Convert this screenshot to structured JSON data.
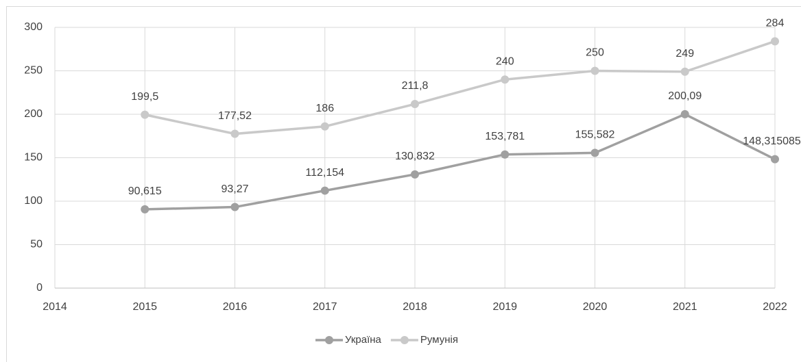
{
  "chart_data": {
    "type": "line",
    "x": [
      2015,
      2016,
      2017,
      2018,
      2019,
      2020,
      2021,
      2022
    ],
    "series": [
      {
        "name": "Україна",
        "color": "#a0a0a0",
        "values": [
          90.615,
          93.27,
          112.154,
          130.832,
          153.781,
          155.582,
          200.09,
          148.3150857
        ],
        "value_labels": [
          "90,615",
          "93,27",
          "112,154",
          "130,832",
          "153,781",
          "155,582",
          "200,09",
          "148,3150857"
        ]
      },
      {
        "name": "Румунія",
        "color": "#c9c9c9",
        "values": [
          199.5,
          177.52,
          186,
          211.8,
          240,
          250,
          249,
          284
        ],
        "value_labels": [
          "199,5",
          "177,52",
          "186",
          "211,8",
          "240",
          "250",
          "249",
          "284"
        ]
      }
    ],
    "xlim": [
      2014,
      2022
    ],
    "xticks": [
      2014,
      2015,
      2016,
      2017,
      2018,
      2019,
      2020,
      2021,
      2022
    ],
    "ylim": [
      0,
      300
    ],
    "yticks": [
      0,
      50,
      100,
      150,
      200,
      250,
      300
    ],
    "grid": true,
    "legend": "bottom"
  }
}
